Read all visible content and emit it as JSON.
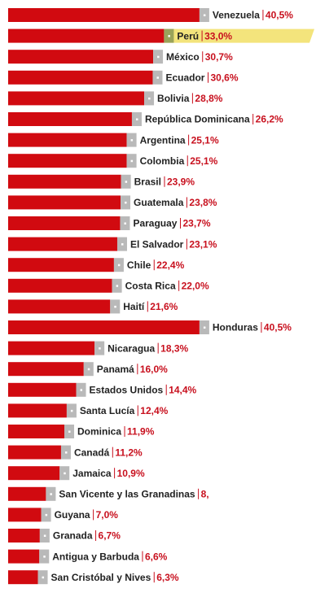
{
  "chart_data": {
    "type": "bar",
    "categories": [
      "Venezuela",
      "Perú",
      "México",
      "Ecuador",
      "Bolivia",
      "República Dominicana",
      "Argentina",
      "Colombia",
      "Brasil",
      "Guatemala",
      "Paraguay",
      "El Salvador",
      "Chile",
      "Costa Rica",
      "Haití",
      "Honduras",
      "Nicaragua",
      "Panamá",
      "Estados Unidos",
      "Santa Lucía",
      "Dominica",
      "Canadá",
      "Jamaica",
      "San Vicente y las Granadinas",
      "Guyana",
      "Granada",
      "Antigua y Barbuda",
      "San Cristóbal y Nives"
    ],
    "values": [
      40.5,
      33.0,
      30.7,
      30.6,
      28.8,
      26.2,
      25.1,
      25.1,
      23.9,
      23.8,
      23.7,
      23.1,
      22.4,
      22.0,
      21.6,
      40.5,
      18.3,
      16.0,
      14.4,
      12.4,
      11.9,
      11.2,
      10.9,
      8,
      7.0,
      6.7,
      6.6,
      6.3
    ],
    "value_labels": [
      "40,5%",
      "33,0%",
      "30,7%",
      "30,6%",
      "28,8%",
      "26,2%",
      "25,1%",
      "25,1%",
      "23,9%",
      "23,8%",
      "23,7%",
      "23,1%",
      "22,4%",
      "22,0%",
      "21,6%",
      "40,5%",
      "18,3%",
      "16,0%",
      "14,4%",
      "12,4%",
      "11,9%",
      "11,2%",
      "10,9%",
      "8,",
      "7,0%",
      "6,7%",
      "6,6%",
      "6,3%"
    ],
    "color": "#d10a10",
    "highlight_index": 1,
    "highlight_color": "#f3e47c"
  }
}
